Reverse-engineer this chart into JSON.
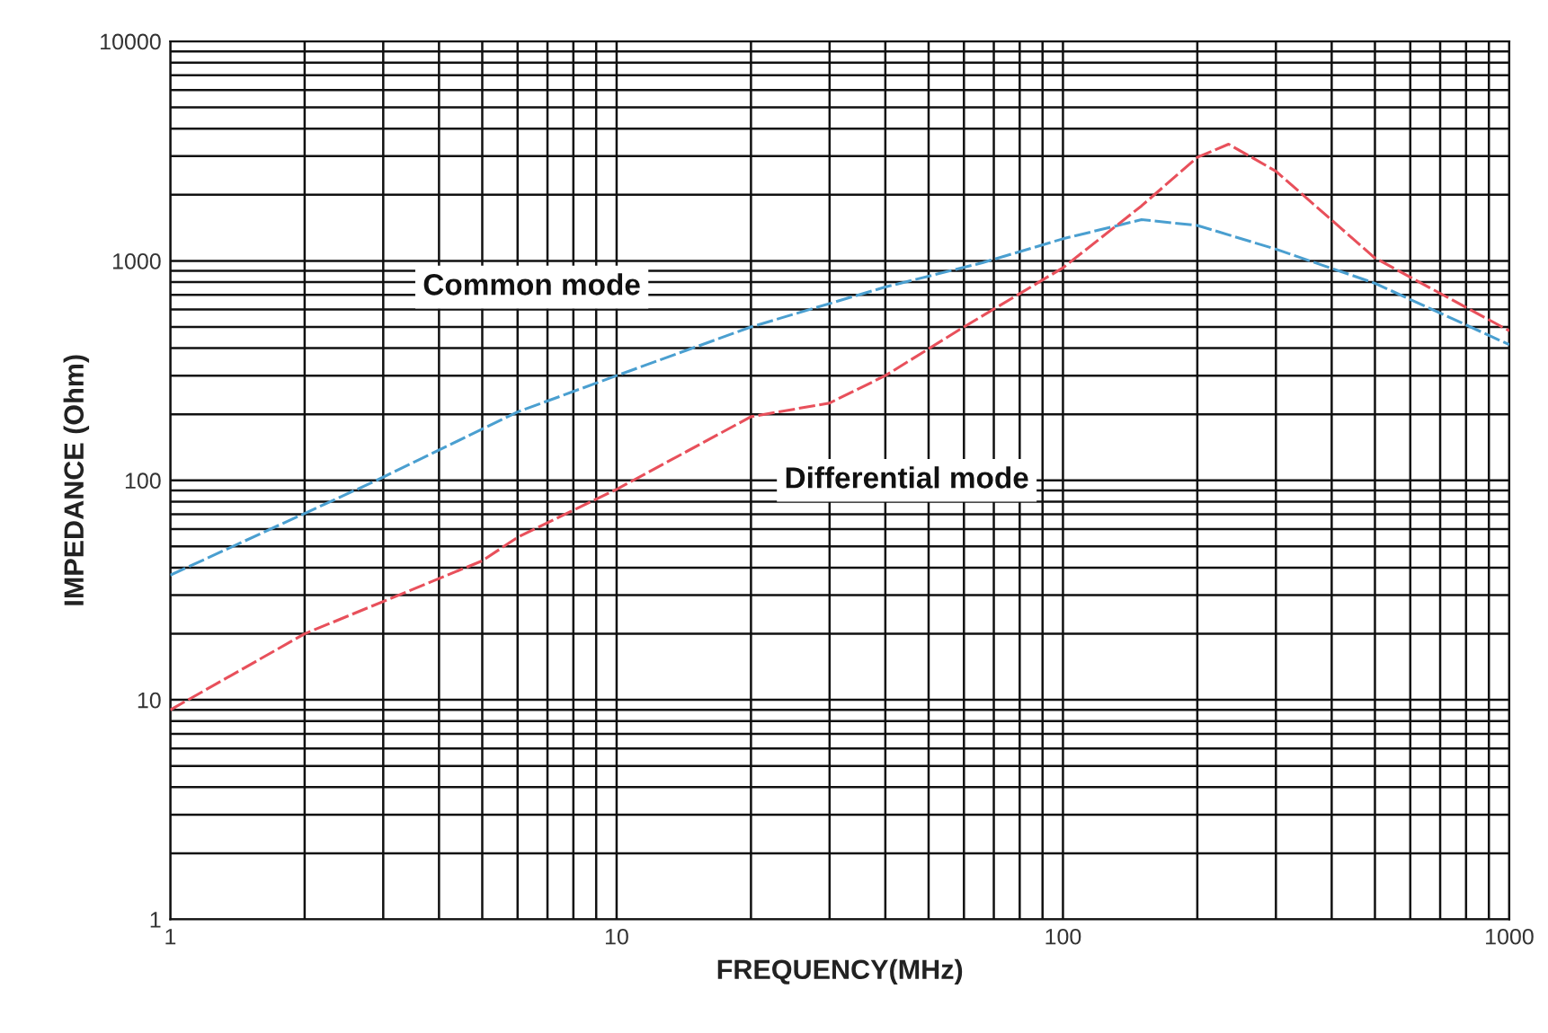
{
  "chart_data": {
    "type": "line",
    "xlabel": "FREQUENCY(MHz)",
    "ylabel": "IMPEDANCE (Ohm)",
    "log": "xy",
    "xlim": [
      1,
      1000
    ],
    "ylim": [
      1,
      10000
    ],
    "xticks": [
      1,
      10,
      100,
      1000
    ],
    "yticks": [
      1,
      10,
      100,
      1000,
      10000
    ],
    "grid": true,
    "line_style": "dashed",
    "marker": "none",
    "series": [
      {
        "name": "Common mode",
        "color": "#4a9fd0",
        "x": [
          1,
          2.9,
          6,
          10,
          20,
          40,
          66,
          100,
          150,
          200,
          300,
          500,
          1000
        ],
        "values": [
          37,
          100,
          205,
          300,
          500,
          760,
          980,
          1260,
          1540,
          1450,
          1130,
          790,
          415
        ]
      },
      {
        "name": "Differential mode",
        "color": "#e8505b",
        "x": [
          1,
          2,
          5,
          6,
          10,
          20,
          30,
          40,
          60,
          100,
          150,
          200,
          235,
          300,
          500,
          1000
        ],
        "values": [
          9,
          20,
          43,
          55,
          91,
          195,
          225,
          300,
          500,
          930,
          1780,
          2960,
          3400,
          2560,
          1030,
          480
        ]
      }
    ]
  }
}
